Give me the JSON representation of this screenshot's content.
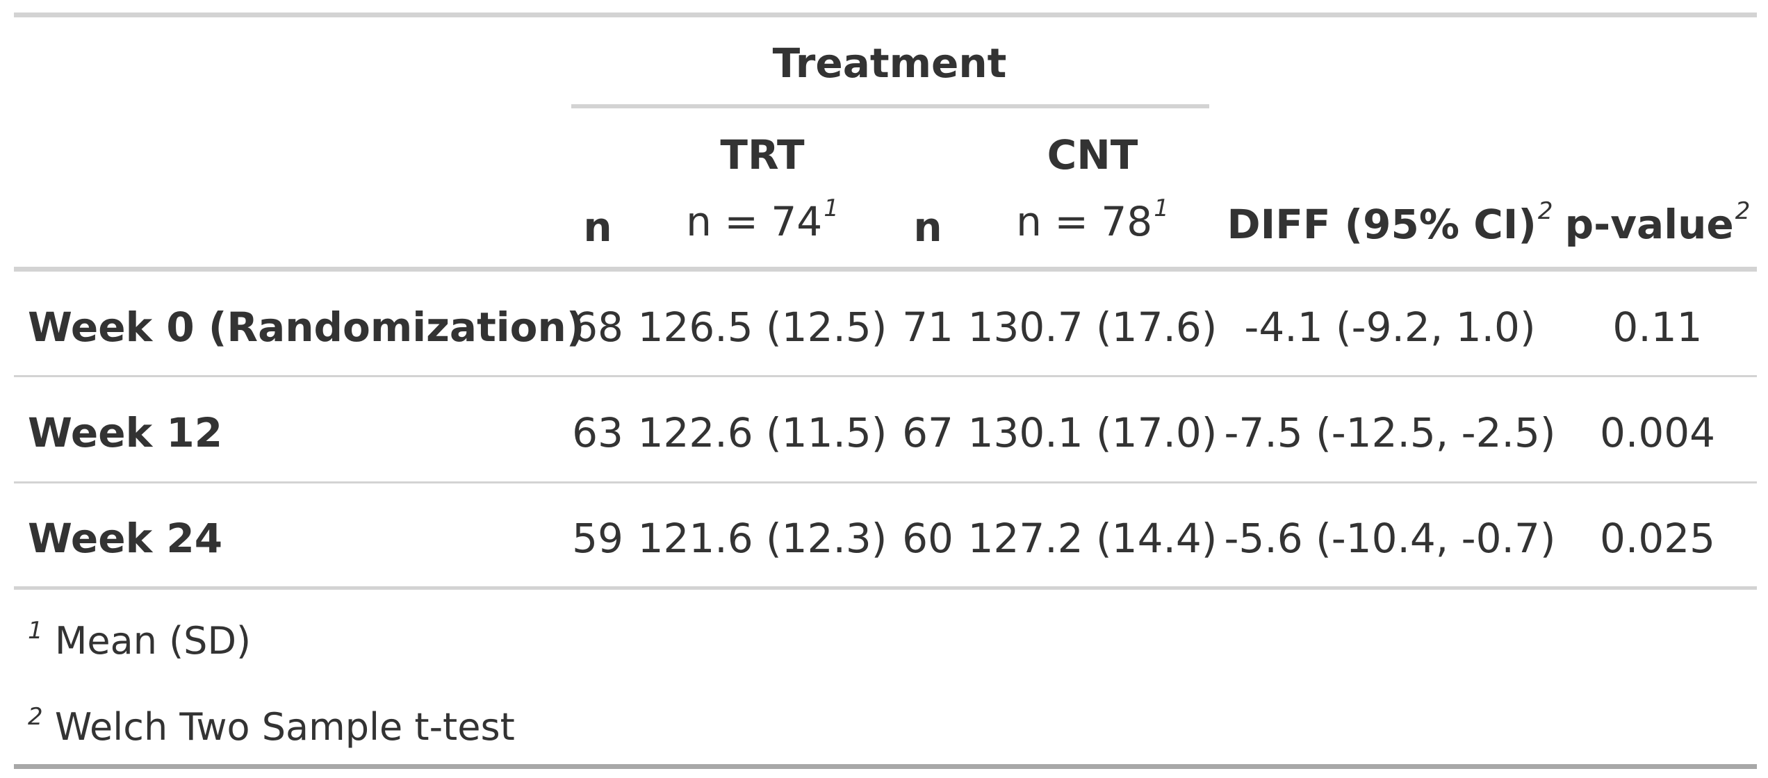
{
  "table": {
    "spanner": "Treatment",
    "groups": [
      {
        "name": "TRT",
        "n_label": "n",
        "count_label": "n = 74",
        "footnote_mark": "1"
      },
      {
        "name": "CNT",
        "n_label": "n",
        "count_label": "n = 78",
        "footnote_mark": "1"
      }
    ],
    "diff_header": "DIFF (95% CI)",
    "diff_mark": "2",
    "pvalue_header": "p-value",
    "pvalue_mark": "2",
    "rows": [
      {
        "label": "Week 0 (Randomization)",
        "trt_n": "68",
        "trt_stat": "126.5 (12.5)",
        "cnt_n": "71",
        "cnt_stat": "130.7 (17.6)",
        "diff": "-4.1 (-9.2, 1.0)",
        "p": "0.11"
      },
      {
        "label": "Week 12",
        "trt_n": "63",
        "trt_stat": "122.6 (11.5)",
        "cnt_n": "67",
        "cnt_stat": "130.1 (17.0)",
        "diff": "-7.5 (-12.5, -2.5)",
        "p": "0.004"
      },
      {
        "label": "Week 24",
        "trt_n": "59",
        "trt_stat": "121.6 (12.3)",
        "cnt_n": "60",
        "cnt_stat": "127.2 (14.4)",
        "diff": "-5.6 (-10.4, -0.7)",
        "p": "0.025"
      }
    ],
    "footnotes": [
      {
        "mark": "1",
        "text": "Mean (SD)"
      },
      {
        "mark": "2",
        "text": "Welch Two Sample t-test"
      }
    ]
  }
}
